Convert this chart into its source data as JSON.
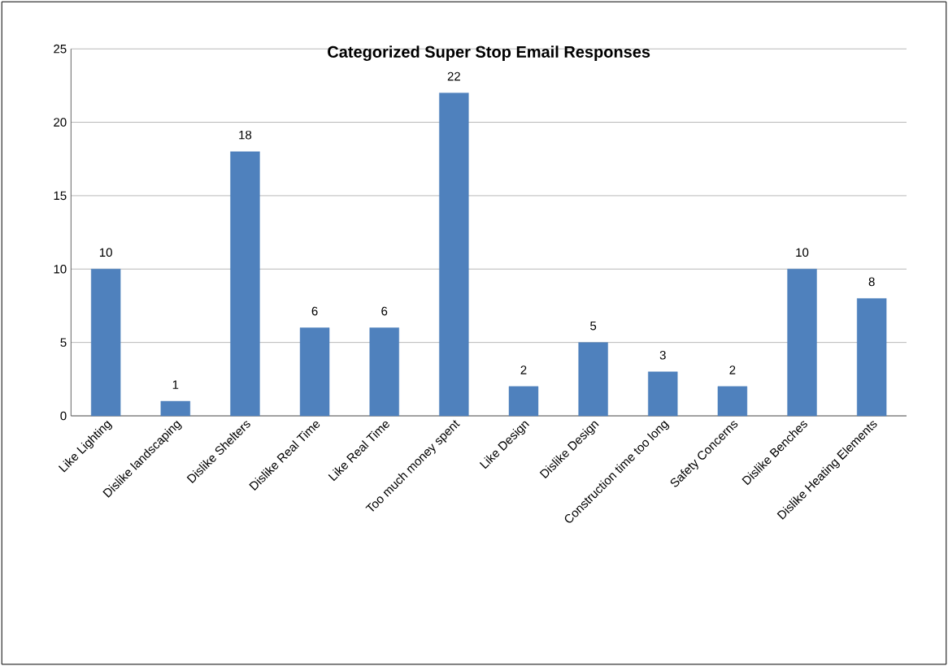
{
  "chart_data": {
    "type": "bar",
    "title": "Categorized Super Stop Email Responses",
    "categories": [
      "Like Lighting",
      "Dislike landscaping",
      "Dislike Shelters",
      "Dislike Real Time",
      "Like Real Time",
      "Too much money spent",
      "Like Design",
      "Dislike Design",
      "Construction time too long",
      "Safety Concerns",
      "Dislike Benches",
      "Dislike Heating Elements"
    ],
    "values": [
      10,
      1,
      18,
      6,
      6,
      22,
      2,
      5,
      3,
      2,
      10,
      8
    ],
    "color": "#4f81bd",
    "ylim": [
      0,
      25
    ],
    "yticks": [
      0,
      5,
      10,
      15,
      20,
      25
    ],
    "grid": "y",
    "data_labels": true
  }
}
